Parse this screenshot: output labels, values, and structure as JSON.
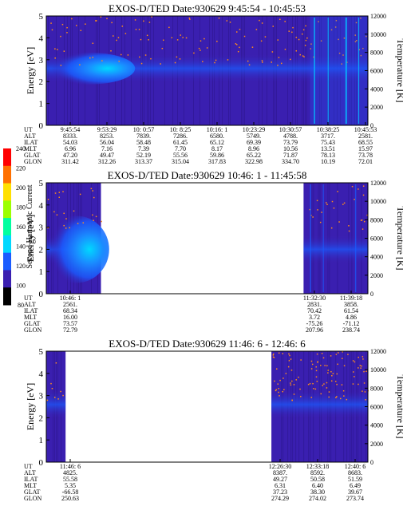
{
  "colors": {
    "background_band": "#3a1fb0",
    "background_band_dark": "#2d1690",
    "band_bright": "#1a5cff",
    "band_peak": "#00d8ff",
    "dot_orange": "#ff8c1a",
    "empty": "#ffffff"
  },
  "colorbar": {
    "label": "Second Harmonic Current",
    "ticks": [
      "240",
      "220",
      "200",
      "180",
      "160",
      "140",
      "120",
      "100",
      "80"
    ],
    "colors": [
      "#ff0000",
      "#ff7000",
      "#ffe000",
      "#9cff00",
      "#00ffa0",
      "#00d8ff",
      "#1a5cff",
      "#3a1fb0",
      "#000000"
    ]
  },
  "chart_data": [
    {
      "type": "heatmap",
      "title": "EXOS-D/TED",
      "date_label": "Date:930629",
      "time_range": "9:45:54 - 10:45:53",
      "ylabel": "Energy [eV]",
      "ylabel_right": "Temperature [K]",
      "ylim": [
        0,
        5
      ],
      "ylim_right": [
        0,
        12000
      ],
      "y_ticks": [
        "0",
        "1",
        "2",
        "3",
        "4",
        "5"
      ],
      "y_ticks_right": [
        "0",
        "2000",
        "4000",
        "6000",
        "8000",
        "10000",
        "12000"
      ],
      "data_coverage": [
        [
          0.0,
          1.0
        ]
      ],
      "band": {
        "center_ev": 2.6,
        "strong_until": 0.24
      },
      "row_labels": [
        "UT",
        "ALT",
        "ILAT",
        "MLT",
        "GLAT",
        "GLON"
      ],
      "columns": [
        [
          "9:45:54",
          "8333.",
          "54.03",
          "6.96",
          "47.20",
          "311.42"
        ],
        [
          "9:53:29",
          "8253.",
          "56.04",
          "7.16",
          "49.47",
          "312.26"
        ],
        [
          "10: 0:57",
          "7839.",
          "58.48",
          "7.39",
          "52.19",
          "313.37"
        ],
        [
          "10: 8:25",
          "7286.",
          "61.45",
          "7.70",
          "55.56",
          "315.04"
        ],
        [
          "10:16: 1",
          "6580.",
          "65.12",
          "8.17",
          "59.86",
          "317.83"
        ],
        [
          "10:23:29",
          "5749.",
          "69.39",
          "8.96",
          "65.22",
          "322.98"
        ],
        [
          "10:30:57",
          "4788.",
          "73.79",
          "10.56",
          "71.87",
          "334.70"
        ],
        [
          "10:38:25",
          "3717.",
          "75.43",
          "13.51",
          "78.13",
          "10.19"
        ],
        [
          "10:45:53",
          "2581.",
          "68.55",
          "15.97",
          "73.78",
          "72.01"
        ]
      ]
    },
    {
      "type": "heatmap",
      "title": "EXOS-D/TED",
      "date_label": "Date:930629",
      "time_range": "10:46: 1 - 11:45:58",
      "ylabel": "Energy [eV]",
      "ylabel_right": "Temperature [K]",
      "ylim": [
        0,
        5
      ],
      "ylim_right": [
        0,
        12000
      ],
      "y_ticks": [
        "0",
        "1",
        "2",
        "3",
        "4",
        "5"
      ],
      "y_ticks_right": [
        "0",
        "2000",
        "4000",
        "6000",
        "8000",
        "10000",
        "12000"
      ],
      "data_coverage": [
        [
          0.0,
          0.17
        ],
        [
          0.8,
          1.0
        ]
      ],
      "band": {
        "center_ev": 2.0,
        "strong_until": 0.17
      },
      "row_labels": [
        "UT",
        "ALT",
        "ILAT",
        "MLT",
        "GLAT",
        "GLON"
      ],
      "columns": [
        [
          "10:46: 1",
          "2561.",
          "68.34",
          "16.00",
          "73.57",
          "72.79"
        ],
        [
          "11:32:30",
          "2831.",
          "70.42",
          "3.72",
          "-75.26",
          "207.96"
        ],
        [
          "11:39:18",
          "3858.",
          "61.54",
          "4.86",
          "-71.12",
          "238.74"
        ]
      ]
    },
    {
      "type": "heatmap",
      "title": "EXOS-D/TED",
      "date_label": "Date:930629",
      "time_range": "11:46: 6 - 12:46: 6",
      "ylabel": "Energy [eV]",
      "ylabel_right": "Temperature [K]",
      "ylim": [
        0,
        5
      ],
      "ylim_right": [
        0,
        12000
      ],
      "y_ticks": [
        "0",
        "1",
        "2",
        "3",
        "4",
        "5"
      ],
      "y_ticks_right": [
        "0",
        "2000",
        "4000",
        "6000",
        "8000",
        "10000",
        "12000"
      ],
      "data_coverage": [
        [
          0.0,
          0.06
        ],
        [
          0.7,
          1.0
        ]
      ],
      "band": {
        "center_ev": 2.6,
        "strong_until": 0.0
      },
      "row_labels": [
        "UT",
        "ALT",
        "ILAT",
        "MLT",
        "GLAT",
        "GLON"
      ],
      "columns": [
        [
          "11:46: 6",
          "4825.",
          "55.58",
          "5.35",
          "-66.58",
          "250.63"
        ],
        [
          "12:26:30",
          "8387.",
          "49.27",
          "6.31",
          "37.23",
          "274.29"
        ],
        [
          "12:33:18",
          "8592.",
          "50.58",
          "6.40",
          "38.30",
          "274.02"
        ],
        [
          "12:40: 6",
          "8683.",
          "51.59",
          "6.49",
          "39.67",
          "273.74"
        ]
      ]
    }
  ]
}
